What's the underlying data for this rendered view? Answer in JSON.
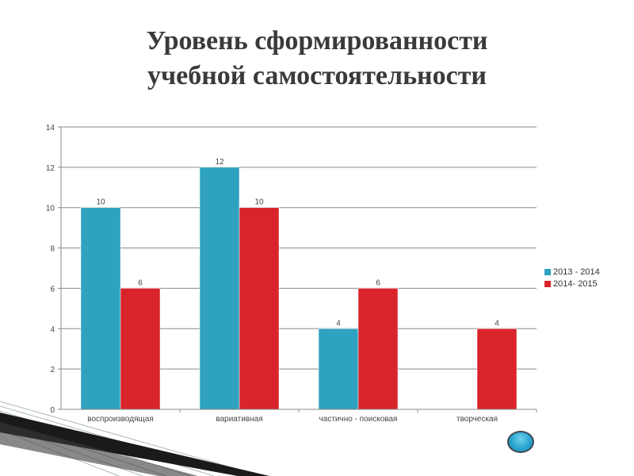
{
  "title": {
    "line1": "Уровень сформированности",
    "line2": "учебной самостоятельности"
  },
  "chart_data": {
    "type": "bar",
    "categories": [
      "воспроизводящая",
      "вариативная",
      "частично - поисковая",
      "творческая"
    ],
    "series": [
      {
        "name": "2013 - 2014",
        "color": "#2fa2c0",
        "values": [
          10,
          12,
          4,
          null
        ],
        "labels": [
          "10",
          "12",
          "4",
          ""
        ]
      },
      {
        "name": "2014- 2015",
        "color": "#d9242b",
        "values": [
          6,
          10,
          6,
          4
        ],
        "labels": [
          "6",
          "10",
          "6",
          "4"
        ]
      }
    ],
    "ylim": [
      0,
      14
    ],
    "yticks": [
      0,
      2,
      4,
      6,
      8,
      10,
      12,
      14
    ],
    "ytick_labels": [
      "0",
      "2",
      "4",
      "6",
      "8",
      "10",
      "12",
      "14"
    ],
    "grid": true,
    "legend": "right"
  }
}
